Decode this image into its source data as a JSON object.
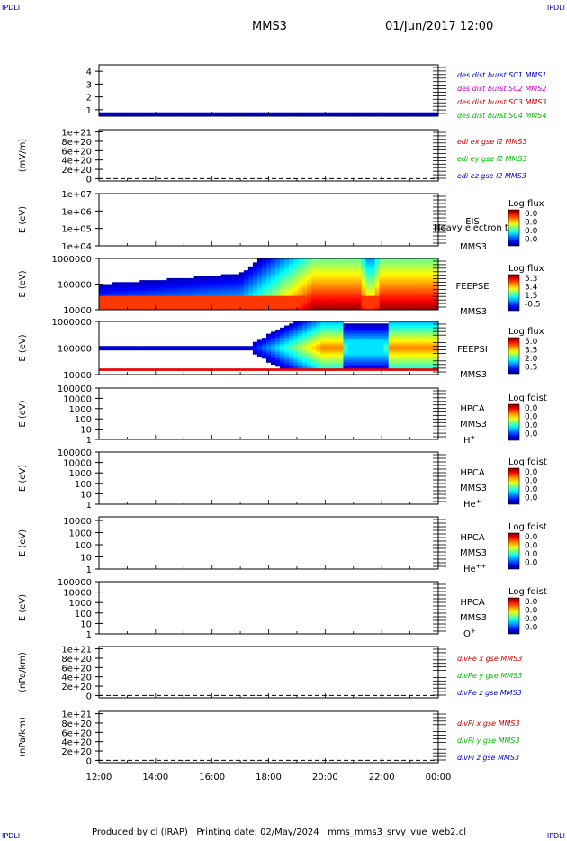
{
  "corner_left_top": "IPDLI",
  "corner_right_top": "IPDLI",
  "corner_left_bottom": "IPDLI",
  "corner_right_bottom": "IPDLI",
  "spacecraft": "MMS3",
  "date": "01/Jun/2017 12:00",
  "footer": "Produced by cl (IRAP)   Printing date: 02/May/2024   mms_mms3_srvy_vue_web2.cl",
  "colors": {
    "blue": "#0000cc",
    "magenta": "#cc00cc",
    "red": "#cc0000",
    "green": "#00bb00",
    "black": "#000000"
  },
  "chart_data": {
    "type": "stacked-panels",
    "time_axis": {
      "ticks": [
        "12:00",
        "14:00",
        "16:00",
        "18:00",
        "20:00",
        "22:00",
        "00:00"
      ],
      "range_hours": [
        12,
        24
      ]
    },
    "panels": [
      {
        "id": "p1",
        "type": "line",
        "ylabel": "",
        "yticks": [
          "4",
          "3",
          "2",
          "1"
        ],
        "ytick_values": [
          4,
          3,
          2,
          1
        ],
        "ylim": [
          0.5,
          4.5
        ],
        "bar_band": {
          "from": 0.5,
          "to": 0.8,
          "color": "#0000cc"
        },
        "legend": [
          {
            "text": "des dist burst SC1 MMS1",
            "color": "#0000cc"
          },
          {
            "text": "des dist burst SC2 MMS2",
            "color": "#cc00cc"
          },
          {
            "text": "des dist burst SC3 MMS3",
            "color": "#cc0000"
          },
          {
            "text": "des dist burst SC4 MMS4",
            "color": "#00bb00"
          }
        ]
      },
      {
        "id": "p2",
        "type": "line",
        "ylabel": "(mV/m)",
        "yticks": [
          "1e+21",
          "8e+20",
          "6e+20",
          "4e+20",
          "2e+20",
          "0"
        ],
        "ytick_values": [
          10,
          8,
          6,
          4,
          2,
          0
        ],
        "ylim": [
          -0.5,
          10.5
        ],
        "dashed_zero": true,
        "legend": [
          {
            "text": "edi ex gse l2 MMS3",
            "color": "#cc0000"
          },
          {
            "text": "edi ey gse l2 MMS3",
            "color": "#00bb00"
          },
          {
            "text": "edi ez gse l2 MMS3",
            "color": "#0000cc"
          }
        ]
      },
      {
        "id": "p3",
        "type": "spectrogram",
        "ylabel": "E (eV)",
        "yticks": [
          "1e+07",
          "1e+06",
          "1e+05",
          "1e+04"
        ],
        "ytick_values": [
          7,
          6,
          5,
          4
        ],
        "ylim": [
          4,
          7
        ],
        "instrument": "EIS",
        "sc": "MMS3",
        "overlay_text": "Heavy electron to",
        "colorbar_title": "Log flux",
        "colorbar_ticks": [
          "0.0",
          "0.0",
          "0.0",
          "0.0"
        ]
      },
      {
        "id": "p4",
        "type": "spectrogram",
        "ylabel": "E (eV)",
        "yticks": [
          "1000000",
          "100000",
          "10000"
        ],
        "ytick_values": [
          6,
          5,
          4
        ],
        "ylim": [
          4,
          6
        ],
        "instrument": "FEEPSE",
        "sc": "MMS3",
        "colorbar_title": "Log flux",
        "colorbar_ticks": [
          "5.3",
          "3.4",
          "1.5",
          "-0.5"
        ],
        "data_start_hour": 12.0
      },
      {
        "id": "p5",
        "type": "spectrogram",
        "ylabel": "E (eV)",
        "yticks": [
          "1000000",
          "100000",
          "10000"
        ],
        "ytick_values": [
          6,
          5,
          4
        ],
        "ylim": [
          4,
          6
        ],
        "instrument": "FEEPSI",
        "sc": "MMS3",
        "colorbar_title": "Log flux",
        "colorbar_ticks": [
          "5.0",
          "3.5",
          "2.0",
          "0.5"
        ],
        "data_start_hour": 12.0
      },
      {
        "id": "p6",
        "type": "spectrogram",
        "ylabel": "E (eV)",
        "yticks": [
          "100000",
          "10000",
          "1000",
          "100",
          "10",
          "1"
        ],
        "ytick_values": [
          5,
          4,
          3,
          2,
          1,
          0
        ],
        "ylim": [
          0,
          5
        ],
        "instrument": "HPCA",
        "sc": "MMS3",
        "species": "H",
        "species_sup": "+",
        "colorbar_title": "Log fdist",
        "colorbar_ticks": [
          "0.0",
          "0.0",
          "0.0",
          "0.0"
        ]
      },
      {
        "id": "p7",
        "type": "spectrogram",
        "ylabel": "E (eV)",
        "yticks": [
          "100000",
          "10000",
          "1000",
          "100",
          "10",
          "1"
        ],
        "ytick_values": [
          5,
          4,
          3,
          2,
          1,
          0
        ],
        "ylim": [
          0,
          5
        ],
        "instrument": "HPCA",
        "sc": "MMS3",
        "species": "He",
        "species_sup": "+",
        "colorbar_title": "Log fdist",
        "colorbar_ticks": [
          "0.0",
          "0.0",
          "0.0",
          "0.0"
        ]
      },
      {
        "id": "p8",
        "type": "spectrogram",
        "ylabel": "E (eV)",
        "yticks": [
          "10000",
          "1000",
          "100",
          "10",
          "1"
        ],
        "ytick_values": [
          4,
          3,
          2,
          1,
          0
        ],
        "ylim": [
          0,
          4.3
        ],
        "instrument": "HPCA",
        "sc": "MMS3",
        "species": "He",
        "species_sup": "++",
        "colorbar_title": "Log fdist",
        "colorbar_ticks": [
          "0.0",
          "0.0",
          "0.0",
          "0.0"
        ]
      },
      {
        "id": "p9",
        "type": "spectrogram",
        "ylabel": "E (eV)",
        "yticks": [
          "100000",
          "10000",
          "1000",
          "100",
          "10",
          "1"
        ],
        "ytick_values": [
          5,
          4,
          3,
          2,
          1,
          0
        ],
        "ylim": [
          0,
          5
        ],
        "instrument": "HPCA",
        "sc": "MMS3",
        "species": "O",
        "species_sup": "+",
        "colorbar_title": "Log fdist",
        "colorbar_ticks": [
          "0.0",
          "0.0",
          "0.0",
          "0.0"
        ]
      },
      {
        "id": "p10",
        "type": "line",
        "ylabel": "(nPa/km)",
        "yticks": [
          "1e+21",
          "8e+20",
          "6e+20",
          "4e+20",
          "2e+20",
          "0"
        ],
        "ytick_values": [
          10,
          8,
          6,
          4,
          2,
          0
        ],
        "ylim": [
          -0.5,
          10.5
        ],
        "dashed_zero": true,
        "legend": [
          {
            "text": "divPe x gse MMS3",
            "color": "#cc0000"
          },
          {
            "text": "divPe y gse MMS3",
            "color": "#00bb00"
          },
          {
            "text": "divPe z gse MMS3",
            "color": "#0000cc"
          }
        ]
      },
      {
        "id": "p11",
        "type": "line",
        "ylabel": "(nPa/km)",
        "yticks": [
          "1e+21",
          "8e+20",
          "6e+20",
          "4e+20",
          "2e+20",
          "0"
        ],
        "ytick_values": [
          10,
          8,
          6,
          4,
          2,
          0
        ],
        "ylim": [
          -0.5,
          10.5
        ],
        "dashed_zero": true,
        "legend": [
          {
            "text": "divPi x gse MMS3",
            "color": "#cc0000"
          },
          {
            "text": "divPi y gse MMS3",
            "color": "#00bb00"
          },
          {
            "text": "divPi z gse MMS3",
            "color": "#0000cc"
          }
        ]
      }
    ]
  }
}
